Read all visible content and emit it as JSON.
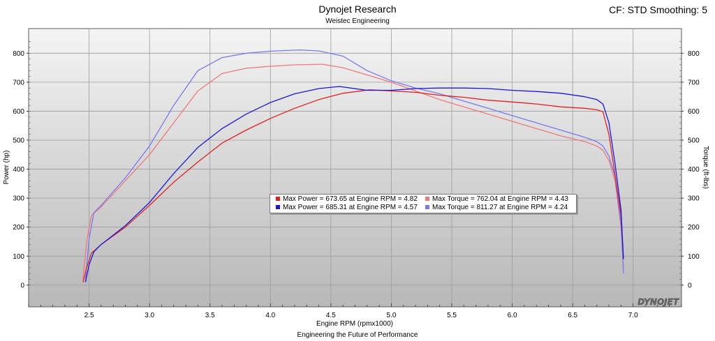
{
  "header": {
    "title": "Dynojet Research",
    "subtitle": "Weistec Engineering",
    "cf_label": "CF: STD Smoothing: 5"
  },
  "footer": {
    "tagline": "Engineering the Future of Performance",
    "logo_text": "DYNOJET"
  },
  "colors": {
    "run1_power": "#e02020",
    "run1_torque": "#f07878",
    "run2_power": "#1818d8",
    "run2_torque": "#7878f0"
  },
  "legend": [
    {
      "label": "Max Power = 673.65 at Engine RPM = 4.82",
      "color": "#e02020"
    },
    {
      "label": "Max Torque = 762.04 at Engine RPM = 4.43",
      "color": "#f07878"
    },
    {
      "label": "Max Power = 685.31 at Engine RPM = 4.57",
      "color": "#1818d8"
    },
    {
      "label": "Max Torque = 811.27 at Engine RPM = 4.24",
      "color": "#7878f0"
    }
  ],
  "chart_data": {
    "type": "line",
    "xlabel": "Engine RPM (rpmx1000)",
    "ylabel": "Power (hp)",
    "y2label": "Torque (ft-lbs)",
    "xlim": [
      2.0,
      7.4
    ],
    "ylim": [
      -75,
      885
    ],
    "xticks": [
      "2.5",
      "3.0",
      "3.5",
      "4.0",
      "4.5",
      "5.0",
      "5.5",
      "6.0",
      "6.5",
      "7.0"
    ],
    "yticks": [
      "0",
      "100",
      "200",
      "300",
      "400",
      "500",
      "600",
      "700",
      "800"
    ],
    "grid": true,
    "legend_position": "center",
    "series": [
      {
        "color": "#e02020",
        "x": [
          2.45,
          2.48,
          2.52,
          2.6,
          2.8,
          3.0,
          3.2,
          3.4,
          3.6,
          3.8,
          4.0,
          4.2,
          4.4,
          4.6,
          4.82,
          5.0,
          5.2,
          5.4,
          5.6,
          5.8,
          6.0,
          6.2,
          6.4,
          6.6,
          6.7,
          6.75,
          6.8,
          6.85,
          6.9,
          6.92
        ],
        "y": [
          10,
          60,
          110,
          140,
          200,
          275,
          355,
          425,
          490,
          535,
          575,
          610,
          640,
          662,
          673.65,
          670,
          665,
          655,
          648,
          638,
          632,
          625,
          615,
          610,
          605,
          598,
          520,
          380,
          240,
          90
        ]
      },
      {
        "color": "#f07878",
        "x": [
          2.45,
          2.48,
          2.52,
          2.6,
          2.8,
          3.0,
          3.2,
          3.4,
          3.6,
          3.8,
          4.0,
          4.2,
          4.43,
          4.6,
          4.8,
          5.0,
          5.2,
          5.4,
          5.6,
          5.8,
          6.0,
          6.2,
          6.4,
          6.6,
          6.7,
          6.75,
          6.8,
          6.85,
          6.9,
          6.92
        ],
        "y": [
          20,
          150,
          240,
          270,
          360,
          450,
          560,
          670,
          730,
          748,
          755,
          760,
          762.04,
          750,
          725,
          700,
          670,
          640,
          615,
          590,
          565,
          540,
          515,
          495,
          480,
          465,
          430,
          360,
          200,
          60
        ]
      },
      {
        "color": "#1818d8",
        "x": [
          2.47,
          2.5,
          2.54,
          2.6,
          2.8,
          3.0,
          3.2,
          3.4,
          3.6,
          3.8,
          4.0,
          4.2,
          4.4,
          4.57,
          4.8,
          5.0,
          5.2,
          5.4,
          5.6,
          5.8,
          6.0,
          6.2,
          6.4,
          6.6,
          6.7,
          6.75,
          6.8,
          6.85,
          6.9,
          6.92
        ],
        "y": [
          10,
          70,
          115,
          140,
          205,
          285,
          385,
          475,
          540,
          590,
          630,
          660,
          678,
          685.31,
          672,
          672,
          678,
          680,
          680,
          678,
          672,
          668,
          662,
          650,
          640,
          625,
          560,
          420,
          260,
          90
        ]
      },
      {
        "color": "#7878f0",
        "x": [
          2.47,
          2.5,
          2.54,
          2.6,
          2.8,
          3.0,
          3.2,
          3.4,
          3.6,
          3.8,
          4.0,
          4.24,
          4.4,
          4.6,
          4.8,
          5.0,
          5.2,
          5.4,
          5.6,
          5.8,
          6.0,
          6.2,
          6.4,
          6.6,
          6.7,
          6.75,
          6.8,
          6.85,
          6.9,
          6.92
        ],
        "y": [
          15,
          160,
          250,
          275,
          370,
          480,
          620,
          740,
          785,
          800,
          807,
          811.27,
          808,
          790,
          740,
          705,
          680,
          660,
          635,
          610,
          585,
          560,
          535,
          510,
          495,
          480,
          445,
          375,
          210,
          40
        ]
      }
    ]
  }
}
